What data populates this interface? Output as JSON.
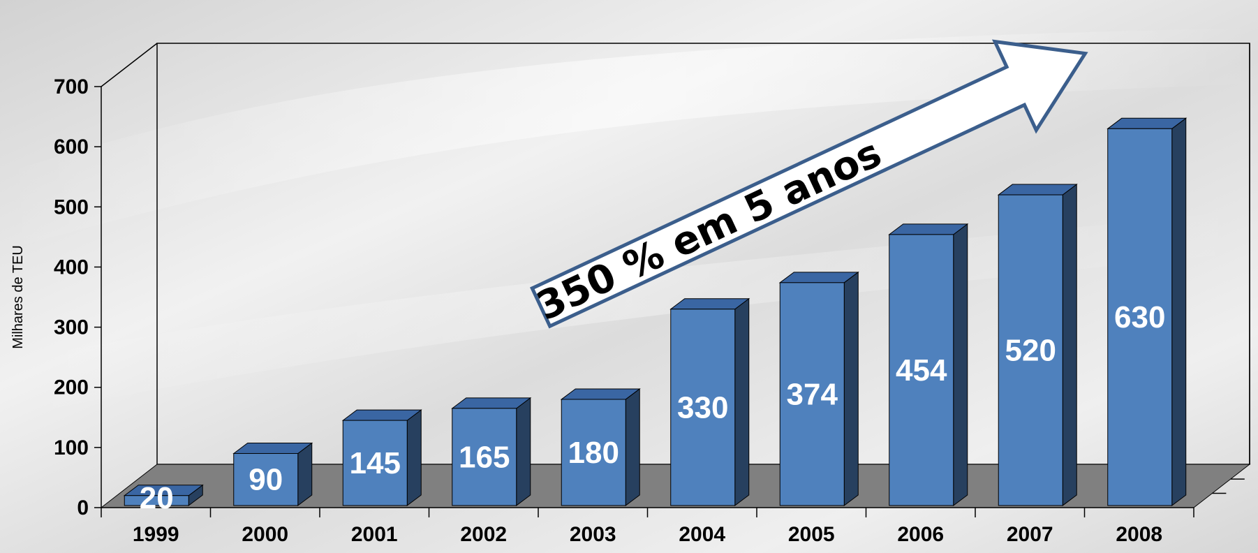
{
  "chart_data": {
    "type": "bar",
    "categories": [
      "1999",
      "2000",
      "2001",
      "2002",
      "2003",
      "2004",
      "2005",
      "2006",
      "2007",
      "2008"
    ],
    "values": [
      20,
      90,
      145,
      165,
      180,
      330,
      374,
      454,
      520,
      630
    ],
    "data_labels": [
      "20",
      "90",
      "145",
      "165",
      "180",
      "330",
      "374",
      "454",
      "520",
      "630"
    ],
    "ylabel": "Milhares de TEU",
    "xlabel": "",
    "ylim": [
      0,
      700
    ],
    "yticks": [
      0,
      100,
      200,
      300,
      400,
      500,
      600,
      700
    ],
    "grid": false,
    "style": "3d-column",
    "annotation": "350 % em 5 anos",
    "colors": {
      "bar_front": "#4F81BD",
      "bar_top": "#3A66A3",
      "bar_side": "#27405F",
      "floor": "#808080",
      "arrow_fill": "#FFFFFF",
      "arrow_stroke": "#3B5E8C"
    }
  }
}
